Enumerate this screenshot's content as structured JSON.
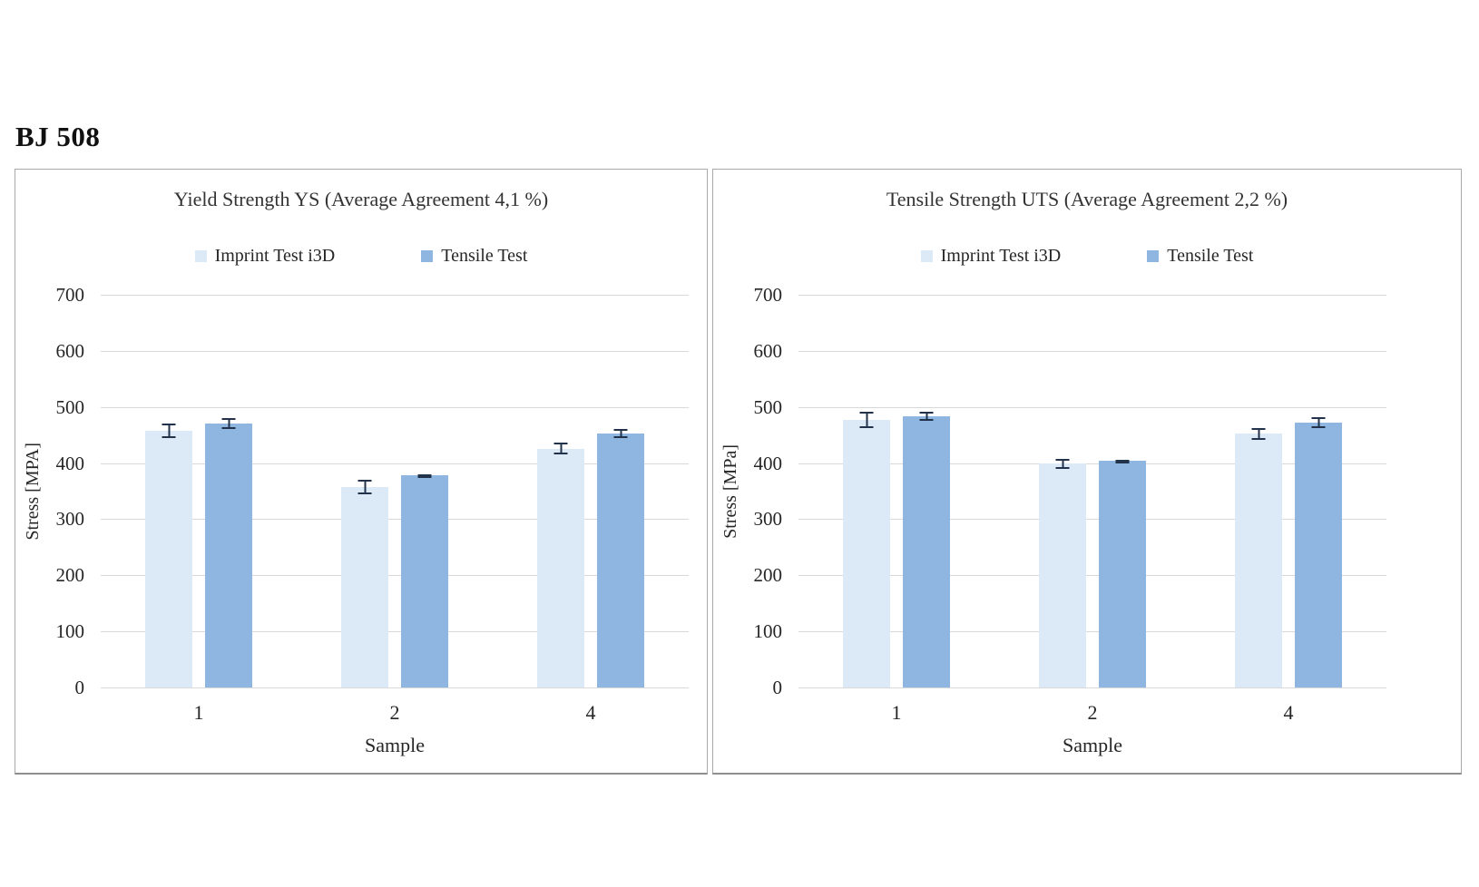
{
  "header": {
    "title": "BJ 508"
  },
  "chart_data": [
    {
      "type": "bar",
      "title": "Yield Strength YS (Average Agreement  4,1 %)",
      "xlabel": "Sample",
      "ylabel": "Stress [MPA]",
      "categories": [
        "1",
        "2",
        "4"
      ],
      "ylim": [
        0,
        700
      ],
      "ytick_step": 100,
      "grid": "horizontal",
      "legend_position": "top-center",
      "series": [
        {
          "name": "Imprint Test i3D",
          "color": "#dce9f6",
          "values": [
            458,
            358,
            426
          ],
          "errors": [
            13,
            13,
            11
          ]
        },
        {
          "name": "Tensile Test",
          "color": "#8fb6e0",
          "values": [
            470,
            378,
            452
          ],
          "errors": [
            10,
            2,
            8
          ]
        }
      ]
    },
    {
      "type": "bar",
      "title": "Tensile Strength UTS (Average Agreement 2,2 %)",
      "xlabel": "Sample",
      "ylabel": "Stress [MPa]",
      "categories": [
        "1",
        "2",
        "4"
      ],
      "ylim": [
        0,
        700
      ],
      "ytick_step": 100,
      "grid": "horizontal",
      "legend_position": "top-center",
      "series": [
        {
          "name": "Imprint Test i3D",
          "color": "#dce9f6",
          "values": [
            477,
            399,
            452
          ],
          "errors": [
            14,
            9,
            11
          ]
        },
        {
          "name": "Tensile Test",
          "color": "#8fb6e0",
          "values": [
            484,
            404,
            472
          ],
          "errors": [
            8,
            2,
            9
          ]
        }
      ]
    }
  ],
  "colors": {
    "imprint_series": "#dce9f6",
    "tensile_series": "#8fb6e0",
    "error_bar": "#22324a",
    "gridline": "#d9d9d9",
    "chart_border": "#a9a9a9",
    "text": "#262626"
  }
}
